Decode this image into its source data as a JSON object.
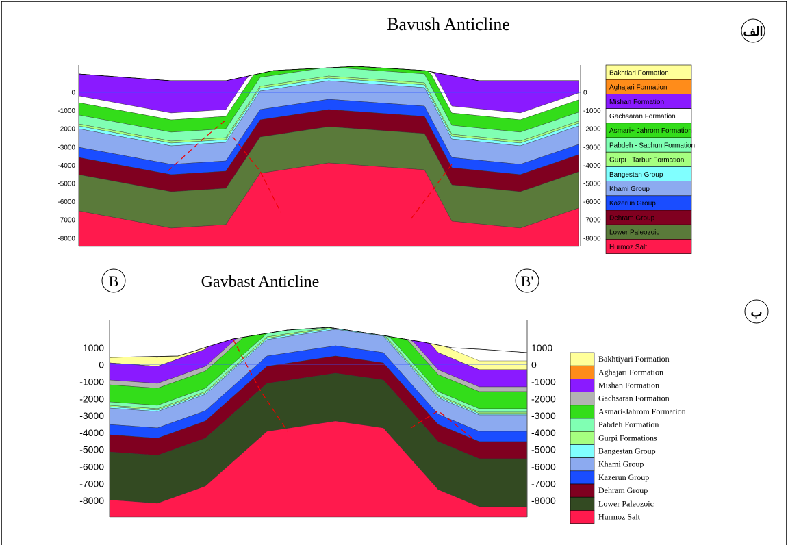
{
  "panels": [
    {
      "title": "Bavush Anticline",
      "label": "الف",
      "ticks": [
        "0",
        "-1000",
        "-2000",
        "-3000",
        "-4000",
        "-5000",
        "-6000",
        "-7000",
        "-8000"
      ],
      "legend": [
        {
          "label": "Bakhtiari Formation",
          "color": "#ffff99"
        },
        {
          "label": "Aghajari Formation",
          "color": "#ff8c1a"
        },
        {
          "label": "Mishan Formation",
          "color": "#8a1aff"
        },
        {
          "label": "Gachsaran Formation",
          "color": "#ffffff"
        },
        {
          "label": "Asmari+ Jahrom  Formation",
          "color": "#33dd1a"
        },
        {
          "label": "Pabdeh - Sachun  Formation",
          "color": "#80ffb3"
        },
        {
          "label": "Gurpi - Tarbur Formation",
          "color": "#a6ff80"
        },
        {
          "label": "Bangestan  Group",
          "color": "#80ffff"
        },
        {
          "label": "Khami Group",
          "color": "#8caaf0"
        },
        {
          "label": "Kazerun Group",
          "color": "#1a4dff"
        },
        {
          "label": "Dehram Group",
          "color": "#800020"
        },
        {
          "label": "Lower Paleozoic",
          "color": "#5a7a3a"
        },
        {
          "label": "Hurmoz Salt",
          "color": "#ff1a4d"
        }
      ]
    },
    {
      "title": "Gavbast Anticline",
      "label": "ب",
      "left_marker": "B",
      "right_marker": "B'",
      "ticks": [
        "1000",
        "0",
        "-1000",
        "-2000",
        "-3000",
        "-4000",
        "-5000",
        "-6000",
        "-7000",
        "-8000"
      ],
      "legend": [
        {
          "label": "Bakhtiyari Formation",
          "color": "#ffff99"
        },
        {
          "label": "Aghajari Formation",
          "color": "#ff8c1a"
        },
        {
          "label": "Mishan Formation",
          "color": "#8a1aff"
        },
        {
          "label": "Gachsaran Formation",
          "color": "#b3b3b3"
        },
        {
          "label": "Asmari-Jahrom Formation",
          "color": "#33dd1a"
        },
        {
          "label": "Pabdeh Formation",
          "color": "#80ffb3"
        },
        {
          "label": "Gurpi Formations",
          "color": "#a6ff80"
        },
        {
          "label": "Bangestan Group",
          "color": "#80ffff"
        },
        {
          "label": "Khami Group",
          "color": "#8caaf0"
        },
        {
          "label": "Kazerun Group",
          "color": "#1a4dff"
        },
        {
          "label": "Dehram Group",
          "color": "#800020"
        },
        {
          "label": "Lower Paleozoic",
          "color": "#334a22"
        },
        {
          "label": "Hurmoz Salt",
          "color": "#ff1a4d"
        }
      ]
    }
  ]
}
